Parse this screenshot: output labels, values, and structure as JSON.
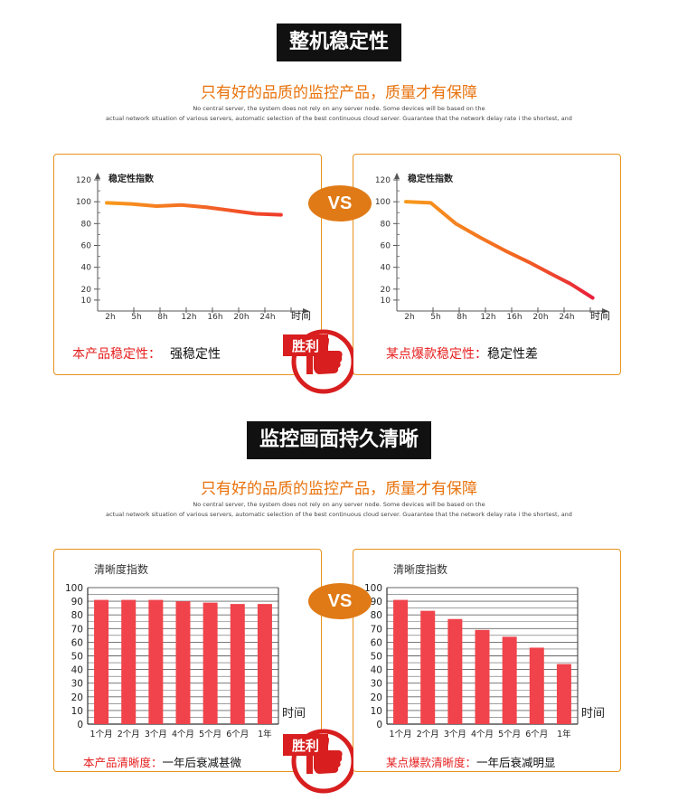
{
  "sections": [
    {
      "title": "整机稳定性",
      "slogan": "只有好的品质的监控产品，质量才有保障",
      "en_line1": "No central server, the system does not rely on any server node. Some devices will be based on the",
      "en_line2": "actual network situation of various servers, automatic selection of the best continuous cloud server. Guarantee that the network delay rate i the shortest, and"
    },
    {
      "title": "监控画面持久清晰",
      "slogan": "只有好的品质的监控产品，质量才有保障",
      "en_line1": "No central server, the system does not rely on any server node. Some devices will be based on the",
      "en_line2": "actual network situation of various servers, automatic selection of the best continuous cloud server. Guarantee that the network delay rate i the shortest, and"
    }
  ],
  "vs_label": "VS",
  "badge_label": "胜利",
  "colors": {
    "accent": "#e8720c",
    "border": "#e8931e",
    "red": "#e61e1e",
    "bar": "#f0434b"
  },
  "stability": {
    "left": {
      "caption_red": "本产品稳定性：",
      "caption_black": "强稳定性",
      "chart_data": {
        "type": "line",
        "ylabel": "稳定性指数",
        "xlabel": "时间",
        "categories": [
          "2h",
          "5h",
          "8h",
          "12h",
          "16h",
          "20h",
          "24h"
        ],
        "yticks": [
          10,
          20,
          40,
          60,
          80,
          100,
          120
        ],
        "ylim": [
          0,
          120
        ],
        "x": [
          0,
          1,
          2,
          3,
          4,
          5,
          6,
          7
        ],
        "values": [
          99,
          98,
          96,
          97,
          95,
          92,
          89,
          88
        ]
      }
    },
    "right": {
      "caption_red": "某点爆款稳定性：",
      "caption_black": "稳定性差",
      "chart_data": {
        "type": "line",
        "ylabel": "稳定性指数",
        "xlabel": "时间",
        "categories": [
          "2h",
          "5h",
          "8h",
          "12h",
          "16h",
          "20h",
          "24h"
        ],
        "yticks": [
          10,
          20,
          40,
          60,
          80,
          100,
          120
        ],
        "ylim": [
          0,
          120
        ],
        "x": [
          0,
          1,
          2,
          3,
          4,
          5,
          6,
          6.6,
          7.5
        ],
        "values": [
          100,
          99,
          80,
          67,
          55,
          44,
          32,
          25,
          12
        ]
      }
    }
  },
  "clarity": {
    "left": {
      "caption_red": "本产品清晰度：",
      "caption_black": "一年后衰减甚微",
      "chart_data": {
        "type": "bar",
        "ylabel": "清晰度指数",
        "xlabel": "时间",
        "categories": [
          "1个月",
          "2个月",
          "3个月",
          "4个月",
          "5个月",
          "6个月",
          "1年"
        ],
        "yticks": [
          0,
          10,
          20,
          30,
          40,
          50,
          60,
          70,
          80,
          90,
          100
        ],
        "ylim": [
          0,
          100
        ],
        "values": [
          91,
          91,
          91,
          90,
          89,
          88,
          88
        ]
      }
    },
    "right": {
      "caption_red": "某点爆款清晰度：",
      "caption_black": "一年后衰减明显",
      "chart_data": {
        "type": "bar",
        "ylabel": "清晰度指数",
        "xlabel": "时间",
        "categories": [
          "1个月",
          "2个月",
          "3个月",
          "4个月",
          "5个月",
          "6个月",
          "1年"
        ],
        "yticks": [
          0,
          10,
          20,
          30,
          40,
          50,
          60,
          70,
          80,
          90,
          100
        ],
        "ylim": [
          0,
          100
        ],
        "values": [
          91,
          83,
          77,
          69,
          64,
          56,
          44
        ]
      }
    }
  }
}
